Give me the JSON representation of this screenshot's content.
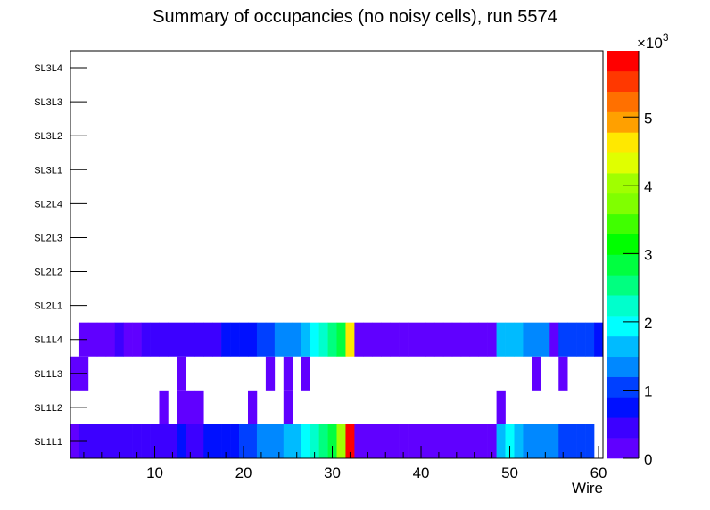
{
  "chart_data": {
    "type": "heatmap",
    "title": "Summary of occupancies (no noisy cells), run 5574",
    "xlabel": "Wire",
    "ylabel": "",
    "xlim": [
      0.5,
      60.5
    ],
    "x_ticks": [
      10,
      20,
      30,
      40,
      50,
      60
    ],
    "y_categories": [
      "SL1L1",
      "SL1L2",
      "SL1L3",
      "SL1L4",
      "SL2L1",
      "SL2L2",
      "SL2L3",
      "SL2L4",
      "SL3L1",
      "SL3L2",
      "SL3L3",
      "SL3L4"
    ],
    "zlim": [
      0,
      5970
    ],
    "z_levels": 20,
    "z_ticks": [
      0,
      1,
      2,
      3,
      4,
      5
    ],
    "z_multiplier_label": "×10",
    "z_multiplier_exp": "3",
    "palette": [
      "#6000ff",
      "#3c00ff",
      "#0010ff",
      "#0040ff",
      "#0088ff",
      "#00bbff",
      "#00ffff",
      "#00ffcc",
      "#00ff80",
      "#00ff40",
      "#00ff00",
      "#40ff00",
      "#80ff00",
      "#a0ff00",
      "#e0ff00",
      "#ffe800",
      "#ffa000",
      "#ff7000",
      "#ff3800",
      "#ff0000"
    ],
    "rows": {
      "SL1L1": [
        150,
        450,
        450,
        450,
        450,
        450,
        450,
        450,
        450,
        450,
        450,
        450,
        750,
        450,
        450,
        750,
        750,
        750,
        750,
        1050,
        1050,
        1340,
        1340,
        1340,
        1640,
        1640,
        1940,
        2240,
        2540,
        2840,
        4030,
        5820,
        150,
        150,
        150,
        150,
        150,
        150,
        150,
        150,
        150,
        150,
        150,
        150,
        150,
        150,
        150,
        150,
        1640,
        1940,
        1640,
        1340,
        1340,
        1340,
        1340,
        1050,
        1050,
        1050,
        1050,
        null
      ],
      "SL1L2": {
        "11": 150,
        "13": 150,
        "14": 150,
        "15": 150,
        "21": 150,
        "25": 150,
        "49": 150
      },
      "SL1L3": {
        "1": 150,
        "2": 150,
        "13": 150,
        "23": 150,
        "25": 150,
        "27": 150,
        "53": 150,
        "56": 150
      },
      "SL1L4": [
        null,
        150,
        150,
        150,
        150,
        450,
        150,
        150,
        450,
        450,
        450,
        450,
        450,
        450,
        450,
        450,
        450,
        750,
        750,
        750,
        750,
        1050,
        1050,
        1340,
        1340,
        1340,
        1640,
        1940,
        2240,
        2540,
        2840,
        4630,
        150,
        150,
        150,
        150,
        150,
        150,
        150,
        150,
        150,
        150,
        150,
        150,
        150,
        150,
        150,
        150,
        1640,
        1640,
        1640,
        1340,
        1340,
        1340,
        150,
        1050,
        1050,
        1050,
        1050,
        750
      ]
    }
  }
}
